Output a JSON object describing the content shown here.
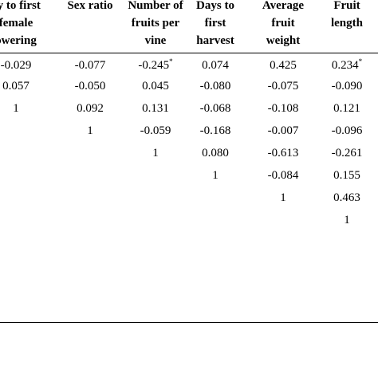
{
  "headers": [
    {
      "lines": [
        "ay to first",
        "female",
        "owering"
      ]
    },
    {
      "lines": [
        "Sex ratio"
      ]
    },
    {
      "lines": [
        "Number of",
        "fruits per",
        "vine"
      ]
    },
    {
      "lines": [
        "Days to",
        "first",
        "harvest"
      ]
    },
    {
      "lines": [
        "Average",
        "fruit",
        "weight"
      ]
    },
    {
      "lines": [
        "Fruit",
        "length"
      ]
    }
  ],
  "rows": [
    [
      {
        "v": "-0.029"
      },
      {
        "v": "-0.077"
      },
      {
        "v": "-0.245",
        "sup": "*"
      },
      {
        "v": "0.074"
      },
      {
        "v": "0.425"
      },
      {
        "v": "0.234",
        "sup": "*"
      }
    ],
    [
      {
        "v": "0.057"
      },
      {
        "v": "-0.050"
      },
      {
        "v": "0.045"
      },
      {
        "v": "-0.080"
      },
      {
        "v": "-0.075"
      },
      {
        "v": "-0.090"
      }
    ],
    [
      {
        "v": "1"
      },
      {
        "v": "0.092"
      },
      {
        "v": "0.131"
      },
      {
        "v": "-0.068"
      },
      {
        "v": "-0.108"
      },
      {
        "v": "0.121"
      }
    ],
    [
      {
        "v": ""
      },
      {
        "v": "1"
      },
      {
        "v": "-0.059"
      },
      {
        "v": "-0.168"
      },
      {
        "v": "-0.007"
      },
      {
        "v": "-0.096"
      }
    ],
    [
      {
        "v": ""
      },
      {
        "v": ""
      },
      {
        "v": "1"
      },
      {
        "v": "0.080"
      },
      {
        "v": "-0.613"
      },
      {
        "v": "-0.261"
      }
    ],
    [
      {
        "v": ""
      },
      {
        "v": ""
      },
      {
        "v": ""
      },
      {
        "v": "1"
      },
      {
        "v": "-0.084"
      },
      {
        "v": "0.155"
      }
    ],
    [
      {
        "v": ""
      },
      {
        "v": ""
      },
      {
        "v": ""
      },
      {
        "v": ""
      },
      {
        "v": "1"
      },
      {
        "v": "0.463"
      }
    ],
    [
      {
        "v": ""
      },
      {
        "v": ""
      },
      {
        "v": ""
      },
      {
        "v": ""
      },
      {
        "v": ""
      },
      {
        "v": "1"
      }
    ]
  ]
}
